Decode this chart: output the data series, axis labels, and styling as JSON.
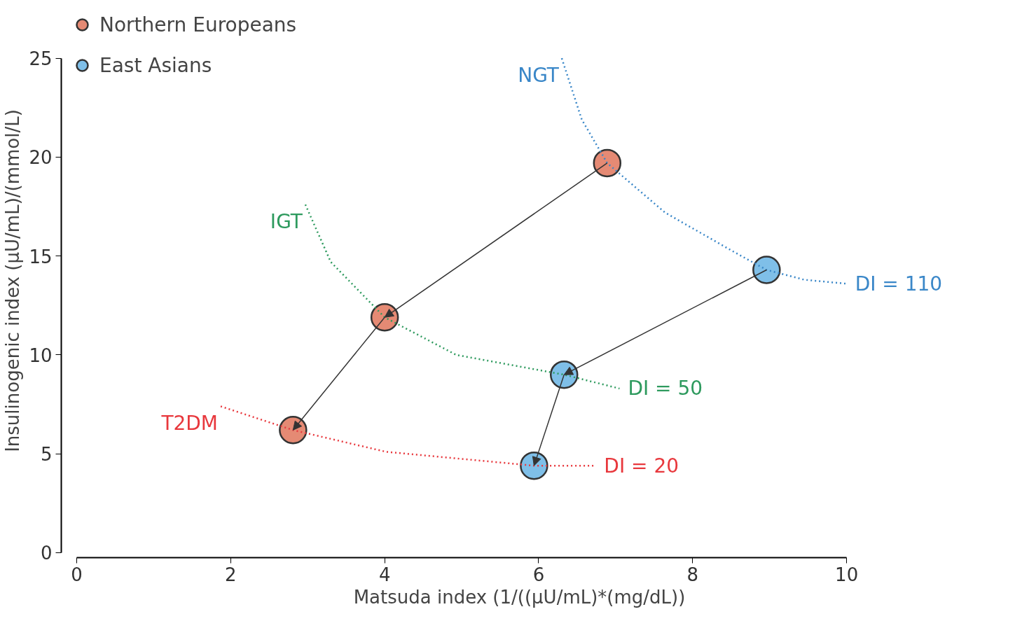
{
  "chart_data": {
    "type": "scatter",
    "xlabel": "Matsuda index (1/((µU/mL)*(mg/dL))",
    "ylabel": "Insulinogenic index (µU/mL)/(mmol/L)",
    "xlim": [
      0,
      10
    ],
    "ylim": [
      0,
      25
    ],
    "xticks": [
      0,
      2,
      4,
      6,
      8,
      10
    ],
    "yticks": [
      0,
      5,
      10,
      15,
      20,
      25
    ],
    "grid": false,
    "legend": "top left",
    "marker": "circle",
    "series": [
      {
        "name": "Northern Europeans",
        "color": "#e58a74",
        "x": [
          6.89,
          4.0,
          2.81
        ],
        "values": [
          19.7,
          11.9,
          6.2
        ]
      },
      {
        "name": "East Asians",
        "color": "#7fbfe8",
        "x": [
          8.96,
          6.33,
          5.94
        ],
        "values": [
          14.3,
          9.0,
          4.4
        ]
      },
      {
        "name": "NGT",
        "type": "line",
        "marker": "none",
        "line_style": "dotted",
        "color": "#3a87c8",
        "x": [
          6.3,
          6.56,
          6.89,
          7.64,
          8.54,
          8.96,
          9.45,
          10.0
        ],
        "values": [
          25,
          21.9,
          19.7,
          17.2,
          15.2,
          14.3,
          13.8,
          13.6
        ]
      },
      {
        "name": "IGT",
        "type": "line",
        "marker": "none",
        "line_style": "dotted",
        "color": "#2e9a5e",
        "x": [
          2.97,
          3.3,
          4.0,
          4.93,
          6.33,
          7.05
        ],
        "values": [
          17.6,
          14.7,
          11.9,
          10.0,
          9.0,
          8.3
        ]
      },
      {
        "name": "T2DM",
        "type": "line",
        "marker": "none",
        "line_style": "dotted",
        "color": "#e8383d",
        "x": [
          1.87,
          2.81,
          4.02,
          5.94,
          6.74
        ],
        "values": [
          7.4,
          6.2,
          5.1,
          4.4,
          4.4
        ]
      }
    ],
    "annotations": [
      {
        "text": "DI = 110",
        "x": 10.0,
        "y": 13.6
      },
      {
        "text": "DI = 50",
        "x": 7.05,
        "y": 8.3
      },
      {
        "text": "DI = 20",
        "x": 6.74,
        "y": 4.4
      }
    ]
  }
}
